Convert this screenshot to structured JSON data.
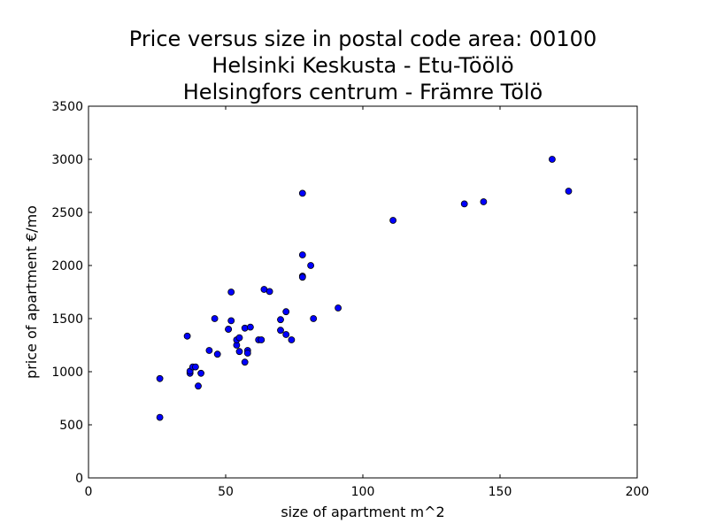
{
  "chart_data": {
    "type": "scatter",
    "title_lines": [
      "Price versus size in postal code area: 00100",
      "Helsinki Keskusta - Etu-Töölö",
      "Helsingfors centrum - Främre Tölö"
    ],
    "xlabel": "size of apartment m^2",
    "ylabel": "price of apartment €/mo",
    "xlim": [
      0,
      200
    ],
    "ylim": [
      0,
      3500
    ],
    "xticks": [
      0,
      50,
      100,
      150,
      200
    ],
    "yticks": [
      0,
      500,
      1000,
      1500,
      2000,
      2500,
      3000,
      3500
    ],
    "grid": false,
    "marker_color": "#0000ff",
    "marker_edge_color": "#000000",
    "points": [
      {
        "x": 26,
        "y": 570
      },
      {
        "x": 26,
        "y": 935
      },
      {
        "x": 36,
        "y": 1335
      },
      {
        "x": 37,
        "y": 985
      },
      {
        "x": 37,
        "y": 1005
      },
      {
        "x": 38,
        "y": 1045
      },
      {
        "x": 39,
        "y": 1045
      },
      {
        "x": 40,
        "y": 865
      },
      {
        "x": 41,
        "y": 985
      },
      {
        "x": 44,
        "y": 1200
      },
      {
        "x": 46,
        "y": 1500
      },
      {
        "x": 47,
        "y": 1165
      },
      {
        "x": 51,
        "y": 1400
      },
      {
        "x": 51,
        "y": 1400
      },
      {
        "x": 52,
        "y": 1480
      },
      {
        "x": 52,
        "y": 1750
      },
      {
        "x": 54,
        "y": 1250
      },
      {
        "x": 54,
        "y": 1300
      },
      {
        "x": 55,
        "y": 1320
      },
      {
        "x": 55,
        "y": 1190
      },
      {
        "x": 57,
        "y": 1090
      },
      {
        "x": 57,
        "y": 1410
      },
      {
        "x": 58,
        "y": 1200
      },
      {
        "x": 58,
        "y": 1175
      },
      {
        "x": 59,
        "y": 1420
      },
      {
        "x": 62,
        "y": 1300
      },
      {
        "x": 63,
        "y": 1300
      },
      {
        "x": 64,
        "y": 1775
      },
      {
        "x": 66,
        "y": 1755
      },
      {
        "x": 70,
        "y": 1490
      },
      {
        "x": 70,
        "y": 1390
      },
      {
        "x": 72,
        "y": 1565
      },
      {
        "x": 72,
        "y": 1350
      },
      {
        "x": 74,
        "y": 1300
      },
      {
        "x": 78,
        "y": 2680
      },
      {
        "x": 78,
        "y": 2100
      },
      {
        "x": 78,
        "y": 1900
      },
      {
        "x": 78,
        "y": 1890
      },
      {
        "x": 81,
        "y": 2000
      },
      {
        "x": 82,
        "y": 1500
      },
      {
        "x": 91,
        "y": 1600
      },
      {
        "x": 111,
        "y": 2425
      },
      {
        "x": 137,
        "y": 2580
      },
      {
        "x": 144,
        "y": 2600
      },
      {
        "x": 169,
        "y": 3000
      },
      {
        "x": 175,
        "y": 2700
      }
    ]
  }
}
